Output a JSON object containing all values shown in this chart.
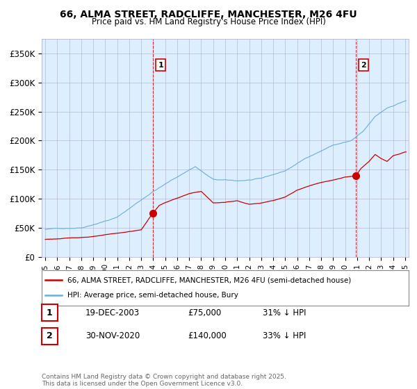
{
  "title": "66, ALMA STREET, RADCLIFFE, MANCHESTER, M26 4FU",
  "subtitle": "Price paid vs. HM Land Registry's House Price Index (HPI)",
  "hpi_label": "HPI: Average price, semi-detached house, Bury",
  "property_label": "66, ALMA STREET, RADCLIFFE, MANCHESTER, M26 4FU (semi-detached house)",
  "sale1": {
    "price": 75000,
    "label": "1",
    "date_str": "19-DEC-2003",
    "price_str": "£75,000",
    "note": "31% ↓ HPI",
    "year": 2004.0
  },
  "sale2": {
    "price": 140000,
    "label": "2",
    "date_str": "30-NOV-2020",
    "price_str": "£140,000",
    "note": "33% ↓ HPI",
    "year": 2020.92
  },
  "ylim": [
    0,
    375000
  ],
  "yticks": [
    0,
    50000,
    100000,
    150000,
    200000,
    250000,
    300000,
    350000
  ],
  "ytick_labels": [
    "£0",
    "£50K",
    "£100K",
    "£150K",
    "£200K",
    "£250K",
    "£300K",
    "£350K"
  ],
  "hpi_color": "#6baed6",
  "property_color": "#cc0000",
  "vline_color": "#cc0000",
  "footer": "Contains HM Land Registry data © Crown copyright and database right 2025.\nThis data is licensed under the Open Government Licence v3.0.",
  "bg_color": "#ffffff",
  "plot_bg_color": "#ddeeff",
  "grid_color": "#aaaacc"
}
